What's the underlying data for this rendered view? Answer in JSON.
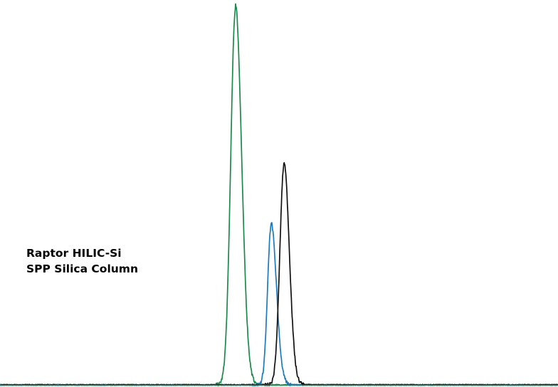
{
  "chart_data": {
    "type": "line",
    "title": "",
    "xlabel": "",
    "ylabel": "",
    "xlim": [
      0,
      100
    ],
    "ylim": [
      0,
      100
    ],
    "grid": false,
    "legend": "none",
    "annotations": [
      "Raptor HILIC-Si",
      "SPP Silica Column"
    ],
    "series": [
      {
        "color": "#1a8a4a",
        "peaks": [
          {
            "rt": 42.2,
            "height": 100,
            "sigma_left": 0.85,
            "sigma_right": 1.1
          }
        ]
      },
      {
        "color": "#1a7bbf",
        "peaks": [
          {
            "rt": 48.6,
            "height": 42.5,
            "sigma_left": 0.65,
            "sigma_right": 0.95
          }
        ]
      },
      {
        "color": "#111111",
        "peaks": [
          {
            "rt": 50.9,
            "height": 58.5,
            "sigma_left": 0.75,
            "sigma_right": 0.95
          }
        ]
      }
    ]
  }
}
